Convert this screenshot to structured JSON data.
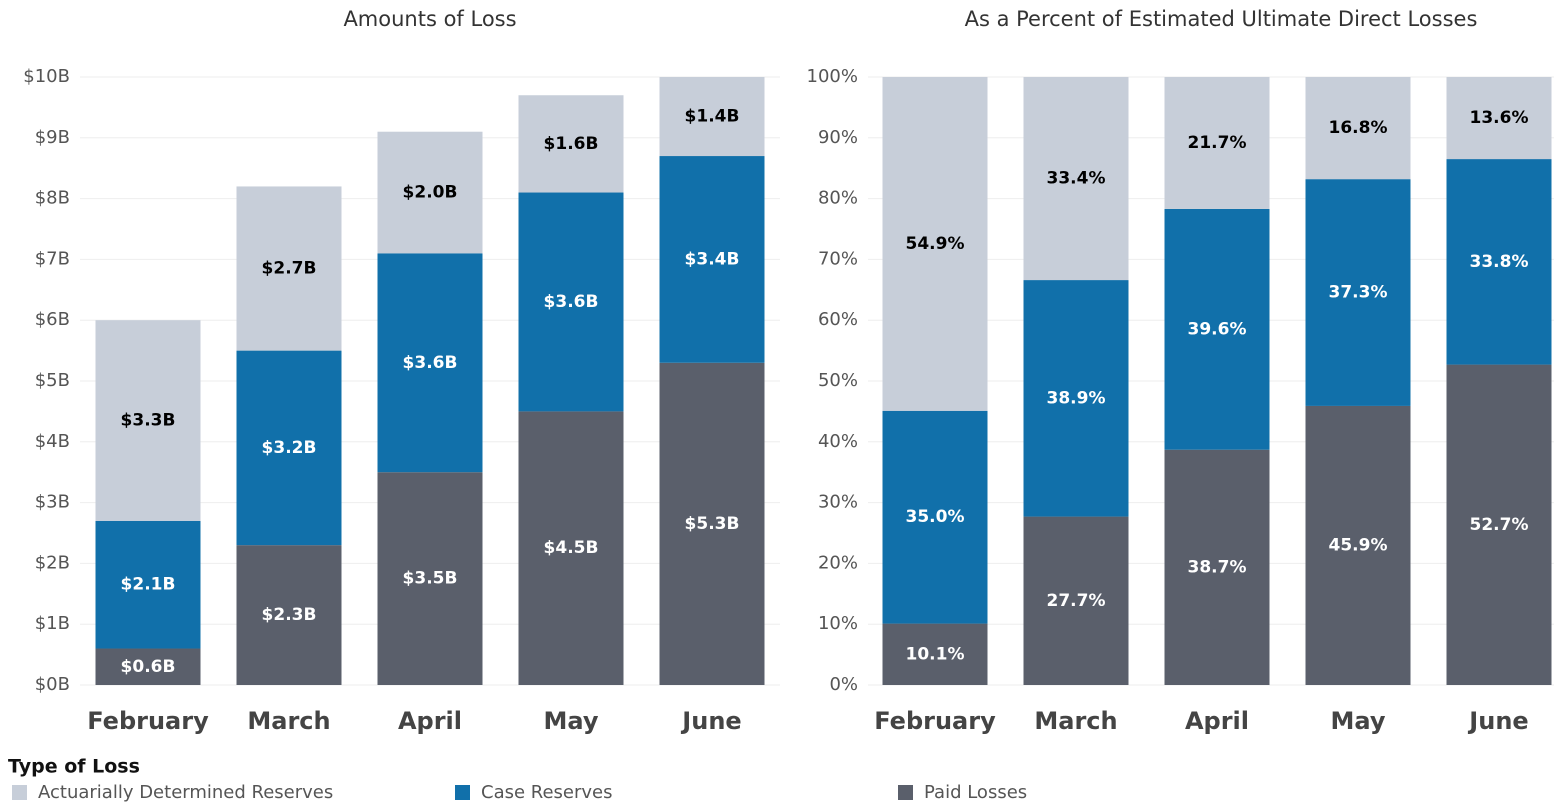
{
  "legend_title": "Type of Loss",
  "chart_data": [
    {
      "type": "bar",
      "stacked": true,
      "title": "Amounts of Loss",
      "categories": [
        "February",
        "March",
        "April",
        "May",
        "June"
      ],
      "ylim": [
        0,
        10
      ],
      "yticks": [
        {
          "value": 0,
          "label": "$0B"
        },
        {
          "value": 1,
          "label": "$1B"
        },
        {
          "value": 2,
          "label": "$2B"
        },
        {
          "value": 3,
          "label": "$3B"
        },
        {
          "value": 4,
          "label": "$4B"
        },
        {
          "value": 5,
          "label": "$5B"
        },
        {
          "value": 6,
          "label": "$6B"
        },
        {
          "value": 7,
          "label": "$7B"
        },
        {
          "value": 8,
          "label": "$8B"
        },
        {
          "value": 9,
          "label": "$9B"
        },
        {
          "value": 10,
          "label": "$10B"
        }
      ],
      "grid": true,
      "series": [
        {
          "name": "Paid Losses",
          "color": "#5a5f6b",
          "label_color": "#ffffff",
          "values": [
            0.6,
            2.3,
            3.5,
            4.5,
            5.3
          ],
          "value_labels": [
            "$0.6B",
            "$2.3B",
            "$3.5B",
            "$4.5B",
            "$5.3B"
          ]
        },
        {
          "name": "Case Reserves",
          "color": "#1170aa",
          "label_color": "#ffffff",
          "values": [
            2.1,
            3.2,
            3.6,
            3.6,
            3.4
          ],
          "value_labels": [
            "$2.1B",
            "$3.2B",
            "$3.6B",
            "$3.6B",
            "$3.4B"
          ]
        },
        {
          "name": "Actuarially Determined Reserves",
          "color": "#c7ced9",
          "label_color": "#000000",
          "values": [
            3.3,
            2.7,
            2.0,
            1.6,
            1.4
          ],
          "value_labels": [
            "$3.3B",
            "$2.7B",
            "$2.0B",
            "$1.6B",
            "$1.4B"
          ]
        }
      ]
    },
    {
      "type": "bar",
      "stacked": true,
      "title": "As a Percent of Estimated Ultimate Direct Losses",
      "categories": [
        "February",
        "March",
        "April",
        "May",
        "June"
      ],
      "ylim": [
        0,
        100
      ],
      "yticks": [
        {
          "value": 0,
          "label": "0%"
        },
        {
          "value": 10,
          "label": "10%"
        },
        {
          "value": 20,
          "label": "20%"
        },
        {
          "value": 30,
          "label": "30%"
        },
        {
          "value": 40,
          "label": "40%"
        },
        {
          "value": 50,
          "label": "50%"
        },
        {
          "value": 60,
          "label": "60%"
        },
        {
          "value": 70,
          "label": "70%"
        },
        {
          "value": 80,
          "label": "80%"
        },
        {
          "value": 90,
          "label": "90%"
        },
        {
          "value": 100,
          "label": "100%"
        }
      ],
      "grid": true,
      "series": [
        {
          "name": "Paid Losses",
          "color": "#5a5f6b",
          "label_color": "#ffffff",
          "values": [
            10.1,
            27.7,
            38.7,
            45.9,
            52.7
          ],
          "value_labels": [
            "10.1%",
            "27.7%",
            "38.7%",
            "45.9%",
            "52.7%"
          ]
        },
        {
          "name": "Case Reserves",
          "color": "#1170aa",
          "label_color": "#ffffff",
          "values": [
            35.0,
            38.9,
            39.6,
            37.3,
            33.8
          ],
          "value_labels": [
            "35.0%",
            "38.9%",
            "39.6%",
            "37.3%",
            "33.8%"
          ]
        },
        {
          "name": "Actuarially Determined Reserves",
          "color": "#c7ced9",
          "label_color": "#000000",
          "values": [
            54.9,
            33.4,
            21.7,
            16.8,
            13.6
          ],
          "value_labels": [
            "54.9%",
            "33.4%",
            "21.7%",
            "16.8%",
            "13.6%"
          ]
        }
      ]
    }
  ]
}
